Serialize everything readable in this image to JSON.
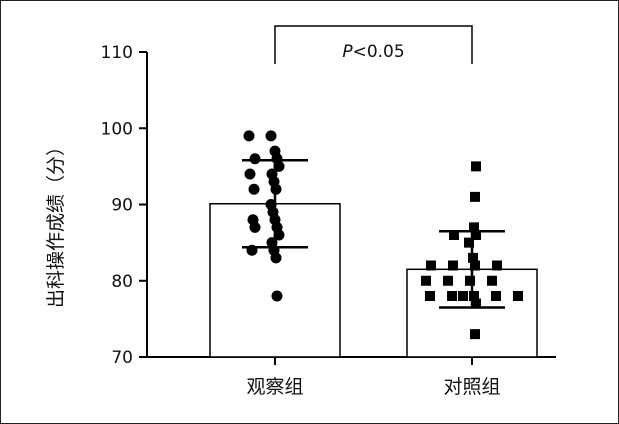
{
  "chart_data": {
    "type": "bar",
    "ylabel": "出科操作成绩（分）",
    "ylim": [
      70,
      110
    ],
    "yticks": [
      70,
      80,
      90,
      100,
      110
    ],
    "categories": [
      "观察组",
      "对照组"
    ],
    "means": [
      90.1,
      81.5
    ],
    "sd": [
      5.7,
      5.0
    ],
    "points": [
      [
        99,
        99,
        97,
        96,
        96,
        95,
        94,
        94,
        93,
        92,
        92,
        90,
        89,
        88,
        88,
        87,
        87,
        86,
        85,
        84,
        84,
        83,
        78
      ],
      [
        95,
        91,
        87,
        86,
        86,
        85,
        83,
        82,
        82,
        82,
        82,
        80,
        80,
        80,
        80,
        78,
        78,
        78,
        78,
        78,
        78,
        77,
        73
      ]
    ],
    "annotation": {
      "text_italic": "P",
      "text_rest": "<0.05",
      "between": [
        0,
        1
      ],
      "y": 110
    },
    "colors": {
      "bar_fill": "#ffffff",
      "stroke": "#000000",
      "marker": "#000000"
    },
    "markers": [
      "circle",
      "square"
    ]
  }
}
